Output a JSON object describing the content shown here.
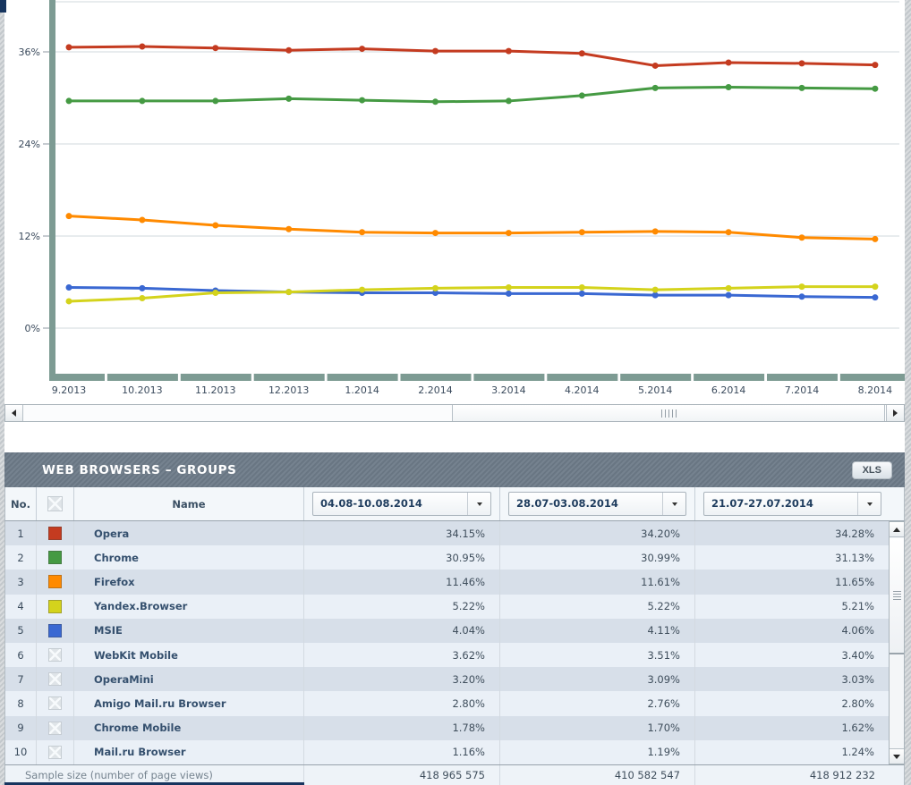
{
  "chart_data": {
    "type": "line",
    "title": "",
    "xlabel": "",
    "ylabel": "",
    "ylim": [
      0,
      48
    ],
    "yticks": [
      0,
      12,
      24,
      36
    ],
    "ytick_labels": [
      "0%",
      "12%",
      "24%",
      "36%"
    ],
    "grid": true,
    "legend_position": "none",
    "x": [
      "9.2013",
      "10.2013",
      "11.2013",
      "12.2013",
      "1.2014",
      "2.2014",
      "3.2014",
      "4.2014",
      "5.2014",
      "6.2014",
      "7.2014",
      "8.2014"
    ],
    "series": [
      {
        "name": "Opera",
        "color": "#c43b20",
        "values": [
          36.6,
          36.7,
          36.5,
          36.2,
          36.4,
          36.1,
          36.1,
          35.8,
          34.2,
          34.6,
          34.5,
          34.3
        ]
      },
      {
        "name": "Chrome",
        "color": "#459a43",
        "values": [
          29.6,
          29.6,
          29.6,
          29.9,
          29.7,
          29.5,
          29.6,
          30.3,
          31.3,
          31.4,
          31.3,
          31.2
        ]
      },
      {
        "name": "Firefox",
        "color": "#ff8a00",
        "values": [
          14.6,
          14.1,
          13.4,
          12.9,
          12.5,
          12.4,
          12.4,
          12.5,
          12.6,
          12.5,
          11.8,
          11.6
        ]
      },
      {
        "name": "Yandex.Browser",
        "color": "#d4d31c",
        "values": [
          3.5,
          3.9,
          4.6,
          4.7,
          5.0,
          5.2,
          5.3,
          5.3,
          5.0,
          5.2,
          5.4,
          5.4
        ]
      },
      {
        "name": "MSIE",
        "color": "#3a68d2",
        "values": [
          5.3,
          5.2,
          4.9,
          4.7,
          4.6,
          4.6,
          4.5,
          4.5,
          4.3,
          4.3,
          4.1,
          4.0
        ]
      }
    ]
  },
  "table": {
    "section_title": "WEB BROWSERS – GROUPS",
    "xls_label": "XLS",
    "columns": {
      "no": "No.",
      "name": "Name"
    },
    "periods": [
      "04.08-10.08.2014",
      "28.07-03.08.2014",
      "21.07-27.07.2014"
    ],
    "rows": [
      {
        "no": "1",
        "swatch": "#c43b20",
        "name": "Opera",
        "values": [
          "34.15%",
          "34.20%",
          "34.28%"
        ]
      },
      {
        "no": "2",
        "swatch": "#459a43",
        "name": "Chrome",
        "values": [
          "30.95%",
          "30.99%",
          "31.13%"
        ]
      },
      {
        "no": "3",
        "swatch": "#ff8a00",
        "name": "Firefox",
        "values": [
          "11.46%",
          "11.61%",
          "11.65%"
        ]
      },
      {
        "no": "4",
        "swatch": "#d4d31c",
        "name": "Yandex.Browser",
        "values": [
          "5.22%",
          "5.22%",
          "5.21%"
        ]
      },
      {
        "no": "5",
        "swatch": "#3a68d2",
        "name": "MSIE",
        "values": [
          "4.04%",
          "4.11%",
          "4.06%"
        ]
      },
      {
        "no": "6",
        "swatch": null,
        "name": "WebKit Mobile",
        "values": [
          "3.62%",
          "3.51%",
          "3.40%"
        ]
      },
      {
        "no": "7",
        "swatch": null,
        "name": "OperaMini",
        "values": [
          "3.20%",
          "3.09%",
          "3.03%"
        ]
      },
      {
        "no": "8",
        "swatch": null,
        "name": "Amigo Mail.ru Browser",
        "values": [
          "2.80%",
          "2.76%",
          "2.80%"
        ]
      },
      {
        "no": "9",
        "swatch": null,
        "name": "Chrome Mobile",
        "values": [
          "1.78%",
          "1.70%",
          "1.62%"
        ]
      },
      {
        "no": "10",
        "swatch": null,
        "name": "Mail.ru Browser",
        "values": [
          "1.16%",
          "1.19%",
          "1.24%"
        ]
      }
    ],
    "footer": {
      "label": "Sample size (number of page views)",
      "values": [
        "418 965 575",
        "410 582 547",
        "418 912 232"
      ]
    }
  }
}
